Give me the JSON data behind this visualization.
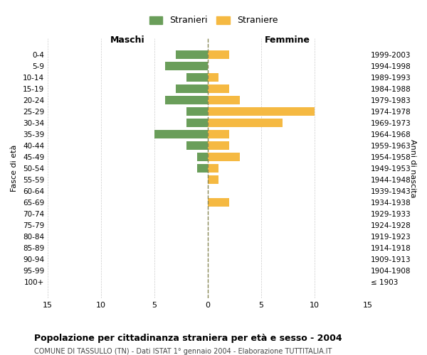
{
  "age_groups": [
    "100+",
    "95-99",
    "90-94",
    "85-89",
    "80-84",
    "75-79",
    "70-74",
    "65-69",
    "60-64",
    "55-59",
    "50-54",
    "45-49",
    "40-44",
    "35-39",
    "30-34",
    "25-29",
    "20-24",
    "15-19",
    "10-14",
    "5-9",
    "0-4"
  ],
  "birth_years": [
    "≤ 1903",
    "1904-1908",
    "1909-1913",
    "1914-1918",
    "1919-1923",
    "1924-1928",
    "1929-1933",
    "1934-1938",
    "1939-1943",
    "1944-1948",
    "1949-1953",
    "1954-1958",
    "1959-1963",
    "1964-1968",
    "1969-1973",
    "1974-1978",
    "1979-1983",
    "1984-1988",
    "1989-1993",
    "1994-1998",
    "1999-2003"
  ],
  "males": [
    0,
    0,
    0,
    0,
    0,
    0,
    0,
    0,
    0,
    0,
    1,
    1,
    2,
    5,
    2,
    2,
    4,
    3,
    2,
    4,
    3
  ],
  "females": [
    0,
    0,
    0,
    0,
    0,
    0,
    0,
    2,
    0,
    1,
    1,
    3,
    2,
    2,
    7,
    10,
    3,
    2,
    1,
    0,
    2
  ],
  "male_color": "#6a9e5a",
  "female_color": "#f5b942",
  "background_color": "#ffffff",
  "grid_color": "#cccccc",
  "center_line_color": "#888855",
  "title": "Popolazione per cittadinanza straniera per età e sesso - 2004",
  "subtitle": "COMUNE DI TASSULLO (TN) - Dati ISTAT 1° gennaio 2004 - Elaborazione TUTTITALIA.IT",
  "xlabel_left": "Maschi",
  "xlabel_right": "Femmine",
  "ylabel_left": "Fasce di età",
  "ylabel_right": "Anni di nascita",
  "legend_male": "Stranieri",
  "legend_female": "Straniere",
  "xlim": 15,
  "bar_height": 0.8
}
